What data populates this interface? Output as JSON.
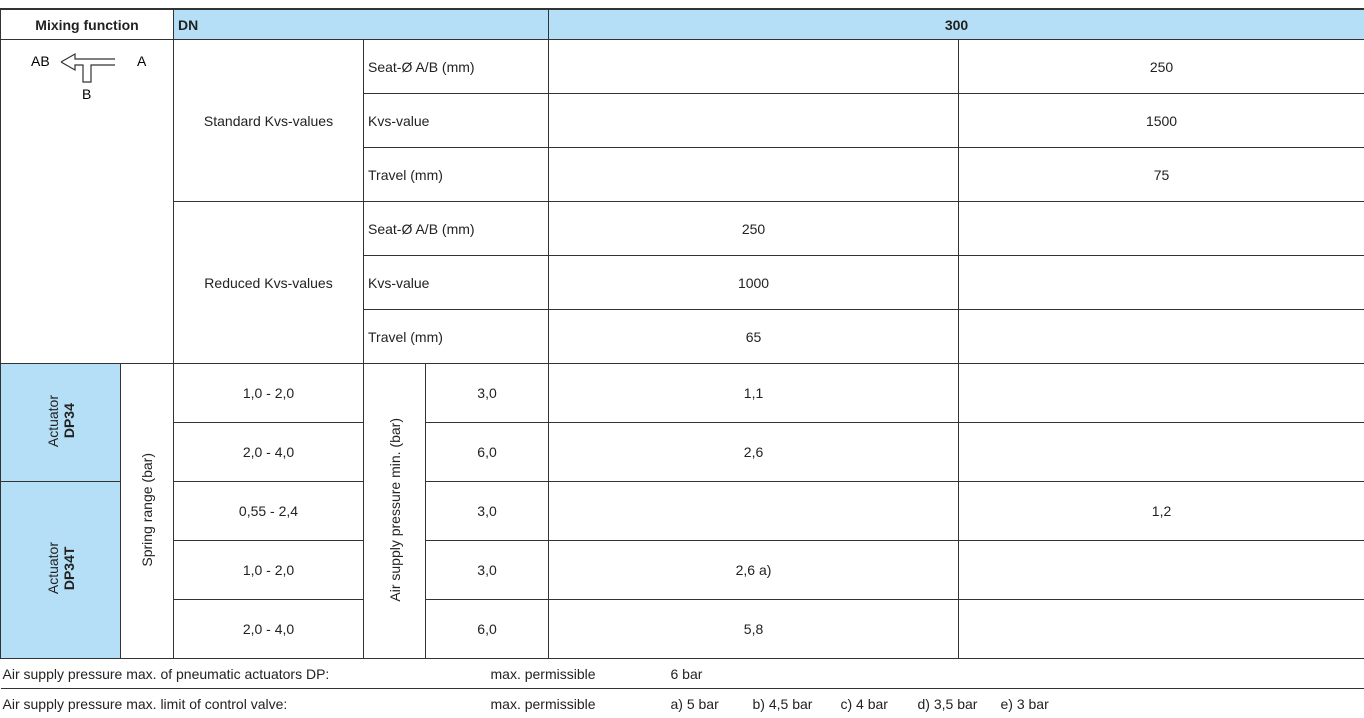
{
  "header": {
    "mixing_function": "Mixing function",
    "dn_label": "DN",
    "dn_value": "300"
  },
  "diagram": {
    "port_ab": "AB",
    "port_a": "A",
    "port_b": "B"
  },
  "kvs_groups": [
    {
      "label": "Standard Kvs-values",
      "rows": [
        {
          "param": "Seat-Ø A/B (mm)",
          "right": "250"
        },
        {
          "param": "Kvs-value",
          "right": "1500"
        },
        {
          "param": "Travel (mm)",
          "right": "75"
        }
      ]
    },
    {
      "label": "Reduced Kvs-values",
      "rows": [
        {
          "param": "Seat-Ø A/B (mm)",
          "left": "250"
        },
        {
          "param": "Kvs-value",
          "left": "1000"
        },
        {
          "param": "Travel (mm)",
          "left": "65"
        }
      ]
    }
  ],
  "spring_range_label": "Spring range (bar)",
  "air_supply_label": "Air supply pressure min. (bar)",
  "actuators": [
    {
      "label": "Actuator",
      "model": "DP34"
    },
    {
      "label": "Actuator",
      "model": "DP34T"
    }
  ],
  "actuator_rows": [
    {
      "spring_range": "1,0 - 2,0",
      "air_supply": "3,0",
      "left": "1,1"
    },
    {
      "spring_range": "2,0 - 4,0",
      "air_supply": "6,0",
      "left": "2,6"
    },
    {
      "spring_range": "0,55 - 2,4",
      "air_supply": "3,0",
      "right": "1,2"
    },
    {
      "spring_range": "1,0 - 2,0",
      "air_supply": "3,0",
      "left": "2,6 a)"
    },
    {
      "spring_range": "2,0 - 4,0",
      "air_supply": "6,0",
      "left": "5,8"
    }
  ],
  "footer": [
    {
      "label": "Air supply pressure max. of pneumatic actuators DP:",
      "qualifier": "max. permissible",
      "values": [
        "6 bar"
      ]
    },
    {
      "label": "Air supply pressure max. limit of control valve:",
      "qualifier": "max. permissible",
      "values": [
        "a) 5 bar",
        "b) 4,5 bar",
        "c) 4 bar",
        "d) 3,5 bar",
        "e) 3 bar"
      ]
    }
  ]
}
